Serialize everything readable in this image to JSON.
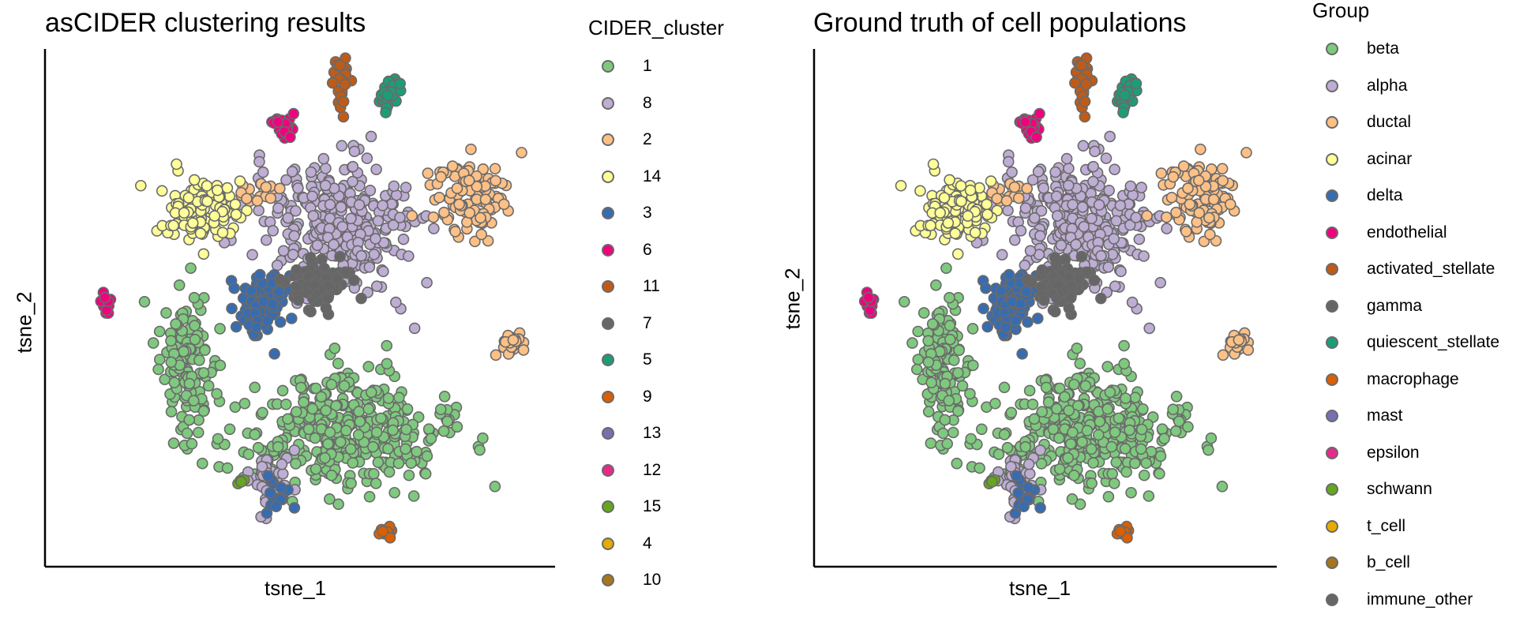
{
  "chart_data": [
    {
      "type": "scatter",
      "title": "asCIDER clustering results",
      "xlabel": "tsne_1",
      "ylabel": "tsne_2",
      "legend": {
        "title": "CIDER_cluster",
        "placement": "right",
        "entries": [
          {
            "label": "1",
            "color": "#7fc97f"
          },
          {
            "label": "8",
            "color": "#beaed4"
          },
          {
            "label": "2",
            "color": "#fdc086"
          },
          {
            "label": "14",
            "color": "#ffff99"
          },
          {
            "label": "3",
            "color": "#386cb0"
          },
          {
            "label": "6",
            "color": "#f0027f"
          },
          {
            "label": "11",
            "color": "#bf5b17"
          },
          {
            "label": "7",
            "color": "#666666"
          },
          {
            "label": "5",
            "color": "#1b9e77"
          },
          {
            "label": "9",
            "color": "#d95f02"
          },
          {
            "label": "13",
            "color": "#7570b3"
          },
          {
            "label": "12",
            "color": "#e7298a"
          },
          {
            "label": "15",
            "color": "#66a61e"
          },
          {
            "label": "4",
            "color": "#e6ab02"
          },
          {
            "label": "10",
            "color": "#a6761d"
          }
        ]
      },
      "grid": false,
      "ticks": false,
      "clusters": [
        {
          "label": "1",
          "center": [
            0.58,
            0.26
          ],
          "spread": [
            0.19,
            0.1
          ],
          "n": 380
        },
        {
          "label": "1",
          "center": [
            0.28,
            0.38
          ],
          "spread": [
            0.05,
            0.14
          ],
          "n": 130
        },
        {
          "label": "8",
          "center": [
            0.58,
            0.66
          ],
          "spread": [
            0.13,
            0.12
          ],
          "n": 300
        },
        {
          "label": "8",
          "center": [
            0.44,
            0.17
          ],
          "spread": [
            0.04,
            0.05
          ],
          "n": 40
        },
        {
          "label": "2",
          "center": [
            0.83,
            0.72
          ],
          "spread": [
            0.07,
            0.08
          ],
          "n": 110
        },
        {
          "label": "2",
          "center": [
            0.91,
            0.43
          ],
          "spread": [
            0.03,
            0.02
          ],
          "n": 25
        },
        {
          "label": "2",
          "center": [
            0.41,
            0.72
          ],
          "spread": [
            0.04,
            0.02
          ],
          "n": 20
        },
        {
          "label": "14",
          "center": [
            0.3,
            0.69
          ],
          "spread": [
            0.07,
            0.06
          ],
          "n": 120
        },
        {
          "label": "3",
          "center": [
            0.43,
            0.51
          ],
          "spread": [
            0.05,
            0.06
          ],
          "n": 90
        },
        {
          "label": "3",
          "center": [
            0.46,
            0.14
          ],
          "spread": [
            0.03,
            0.04
          ],
          "n": 15
        },
        {
          "label": "6",
          "center": [
            0.47,
            0.85
          ],
          "spread": [
            0.03,
            0.02
          ],
          "n": 20
        },
        {
          "label": "6",
          "center": [
            0.12,
            0.51
          ],
          "spread": [
            0.01,
            0.03
          ],
          "n": 12
        },
        {
          "label": "11",
          "center": [
            0.58,
            0.94
          ],
          "spread": [
            0.015,
            0.04
          ],
          "n": 30
        },
        {
          "label": "7",
          "center": [
            0.54,
            0.55
          ],
          "spread": [
            0.05,
            0.04
          ],
          "n": 90
        },
        {
          "label": "5",
          "center": [
            0.68,
            0.91
          ],
          "spread": [
            0.02,
            0.03
          ],
          "n": 30
        },
        {
          "label": "9",
          "center": [
            0.67,
            0.07
          ],
          "spread": [
            0.02,
            0.01
          ],
          "n": 12
        },
        {
          "label": "15",
          "center": [
            0.38,
            0.16
          ],
          "spread": [
            0.01,
            0.01
          ],
          "n": 4
        }
      ]
    },
    {
      "type": "scatter",
      "title": "Ground truth of cell populations",
      "xlabel": "tsne_1",
      "ylabel": "tsne_2",
      "legend": {
        "title": "Group",
        "placement": "right",
        "entries": [
          {
            "label": "beta",
            "color": "#7fc97f"
          },
          {
            "label": "alpha",
            "color": "#beaed4"
          },
          {
            "label": "ductal",
            "color": "#fdc086"
          },
          {
            "label": "acinar",
            "color": "#ffff99"
          },
          {
            "label": "delta",
            "color": "#386cb0"
          },
          {
            "label": "endothelial",
            "color": "#f0027f"
          },
          {
            "label": "activated_stellate",
            "color": "#bf5b17"
          },
          {
            "label": "gamma",
            "color": "#666666"
          },
          {
            "label": "quiescent_stellate",
            "color": "#1b9e77"
          },
          {
            "label": "macrophage",
            "color": "#d95f02"
          },
          {
            "label": "mast",
            "color": "#7570b3"
          },
          {
            "label": "epsilon",
            "color": "#e7298a"
          },
          {
            "label": "schwann",
            "color": "#66a61e"
          },
          {
            "label": "t_cell",
            "color": "#e6ab02"
          },
          {
            "label": "b_cell",
            "color": "#a6761d"
          },
          {
            "label": "immune_other",
            "color": "#666666"
          }
        ]
      },
      "grid": false,
      "ticks": false,
      "clusters": [
        {
          "label": "beta",
          "center": [
            0.58,
            0.26
          ],
          "spread": [
            0.19,
            0.1
          ],
          "n": 380
        },
        {
          "label": "beta",
          "center": [
            0.28,
            0.38
          ],
          "spread": [
            0.05,
            0.14
          ],
          "n": 130
        },
        {
          "label": "alpha",
          "center": [
            0.58,
            0.66
          ],
          "spread": [
            0.13,
            0.12
          ],
          "n": 300
        },
        {
          "label": "alpha",
          "center": [
            0.44,
            0.17
          ],
          "spread": [
            0.04,
            0.05
          ],
          "n": 40
        },
        {
          "label": "ductal",
          "center": [
            0.83,
            0.72
          ],
          "spread": [
            0.07,
            0.08
          ],
          "n": 110
        },
        {
          "label": "ductal",
          "center": [
            0.91,
            0.43
          ],
          "spread": [
            0.03,
            0.02
          ],
          "n": 25
        },
        {
          "label": "ductal",
          "center": [
            0.41,
            0.72
          ],
          "spread": [
            0.04,
            0.02
          ],
          "n": 20
        },
        {
          "label": "acinar",
          "center": [
            0.3,
            0.69
          ],
          "spread": [
            0.07,
            0.06
          ],
          "n": 120
        },
        {
          "label": "delta",
          "center": [
            0.43,
            0.51
          ],
          "spread": [
            0.05,
            0.06
          ],
          "n": 90
        },
        {
          "label": "delta",
          "center": [
            0.46,
            0.14
          ],
          "spread": [
            0.03,
            0.04
          ],
          "n": 15
        },
        {
          "label": "endothelial",
          "center": [
            0.47,
            0.85
          ],
          "spread": [
            0.03,
            0.02
          ],
          "n": 20
        },
        {
          "label": "endothelial",
          "center": [
            0.12,
            0.51
          ],
          "spread": [
            0.01,
            0.03
          ],
          "n": 12
        },
        {
          "label": "activated_stellate",
          "center": [
            0.58,
            0.94
          ],
          "spread": [
            0.015,
            0.04
          ],
          "n": 30
        },
        {
          "label": "gamma",
          "center": [
            0.54,
            0.55
          ],
          "spread": [
            0.05,
            0.04
          ],
          "n": 90
        },
        {
          "label": "quiescent_stellate",
          "center": [
            0.68,
            0.91
          ],
          "spread": [
            0.02,
            0.03
          ],
          "n": 30
        },
        {
          "label": "macrophage",
          "center": [
            0.67,
            0.07
          ],
          "spread": [
            0.02,
            0.01
          ],
          "n": 12
        },
        {
          "label": "schwann",
          "center": [
            0.38,
            0.16
          ],
          "spread": [
            0.01,
            0.01
          ],
          "n": 4
        }
      ]
    }
  ]
}
